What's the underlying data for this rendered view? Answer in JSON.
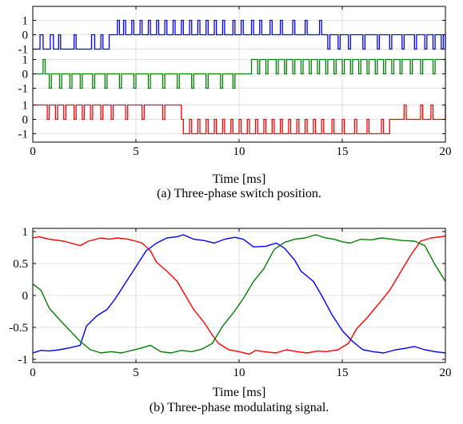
{
  "chart_data": [
    {
      "type": "line",
      "subplot": "a",
      "caption": "(a) Three-phase switch position.",
      "xlabel": "Time [ms]",
      "xlim": [
        0,
        20
      ],
      "x_ticks": [
        "0",
        "5",
        "10",
        "15",
        "20"
      ],
      "y_ticks": [
        "1",
        "0",
        "-1"
      ],
      "ylim_each": [
        -1,
        1
      ],
      "stacked_panels": 3,
      "grid": true,
      "series": [
        {
          "color": "#0000ff",
          "x": [
            0,
            0.35,
            0.5,
            0.85,
            1.0,
            1.25,
            1.35,
            2.0,
            2.1,
            2.85,
            3.0,
            3.3,
            3.4,
            3.7,
            3.8,
            4.1,
            4.2,
            4.4,
            4.5,
            4.8,
            4.9,
            5.2,
            5.3,
            5.6,
            5.7,
            6.0,
            6.1,
            6.4,
            6.5,
            6.8,
            6.9,
            7.2,
            7.3,
            7.6,
            7.7,
            8.0,
            8.1,
            8.4,
            8.5,
            8.8,
            8.9,
            9.2,
            9.3,
            9.7,
            9.8,
            10.1,
            10.2,
            10.6,
            10.7,
            11.0,
            11.1,
            11.5,
            11.6,
            12.0,
            12.1,
            12.6,
            12.7,
            13.2,
            13.3,
            13.9,
            14.0,
            14.3,
            14.4,
            14.8,
            14.9,
            15.3,
            15.4,
            16.0,
            16.1,
            16.7,
            16.8,
            17.3,
            17.4,
            17.9,
            18.0,
            18.5,
            18.6,
            19.0,
            19.1,
            19.4,
            19.5,
            19.8,
            19.9,
            20
          ],
          "y": [
            -1,
            0,
            -1,
            0,
            -1,
            0,
            -1,
            0,
            -1,
            0,
            -1,
            0,
            -1,
            0,
            0,
            1,
            0,
            1,
            0,
            1,
            0,
            1,
            0,
            1,
            0,
            1,
            0,
            1,
            0,
            1,
            0,
            1,
            0,
            1,
            0,
            1,
            0,
            1,
            0,
            1,
            0,
            1,
            0,
            1,
            0,
            1,
            0,
            1,
            0,
            1,
            0,
            1,
            0,
            1,
            0,
            1,
            0,
            1,
            0,
            1,
            0,
            -1,
            0,
            -1,
            0,
            -1,
            0,
            -1,
            0,
            -1,
            0,
            -1,
            0,
            -1,
            0,
            -1,
            0,
            -1,
            0,
            -1,
            0,
            -1,
            0,
            -1
          ]
        },
        {
          "color": "#008000",
          "x": [
            0,
            0.5,
            0.6,
            0.8,
            0.9,
            1.3,
            1.4,
            1.8,
            1.9,
            2.3,
            2.4,
            2.9,
            3.0,
            3.5,
            3.6,
            4.2,
            4.3,
            4.9,
            5.0,
            5.6,
            5.7,
            6.3,
            6.4,
            7.0,
            7.1,
            7.7,
            7.8,
            8.4,
            8.5,
            9.1,
            9.2,
            9.7,
            9.8,
            10.5,
            10.6,
            10.9,
            11.0,
            11.3,
            11.4,
            11.8,
            11.9,
            12.2,
            12.3,
            12.6,
            12.7,
            13.0,
            13.1,
            13.4,
            13.5,
            13.8,
            13.9,
            14.2,
            14.3,
            14.6,
            14.7,
            15.0,
            15.1,
            15.4,
            15.5,
            15.8,
            15.9,
            16.2,
            16.3,
            16.6,
            16.7,
            17.0,
            17.1,
            17.4,
            17.5,
            17.8,
            17.9,
            18.3,
            18.4,
            18.8,
            18.9,
            19.4,
            19.5,
            20
          ],
          "y": [
            0,
            1,
            0,
            -1,
            0,
            -1,
            0,
            -1,
            0,
            -1,
            0,
            -1,
            0,
            -1,
            0,
            -1,
            0,
            -1,
            0,
            -1,
            0,
            -1,
            0,
            -1,
            0,
            -1,
            0,
            -1,
            0,
            -1,
            0,
            -1,
            0,
            0,
            1,
            0,
            1,
            0,
            1,
            0,
            1,
            0,
            1,
            0,
            1,
            0,
            1,
            0,
            1,
            0,
            1,
            0,
            1,
            0,
            1,
            0,
            1,
            0,
            1,
            0,
            1,
            0,
            1,
            0,
            1,
            0,
            1,
            0,
            1,
            0,
            1,
            0,
            1,
            0,
            1,
            0,
            1,
            0
          ]
        },
        {
          "color": "#ff0000",
          "x": [
            0,
            0.7,
            0.8,
            1.1,
            1.2,
            1.5,
            1.6,
            2.0,
            2.1,
            2.4,
            2.5,
            2.8,
            2.9,
            3.3,
            3.4,
            3.8,
            3.9,
            4.5,
            4.6,
            5.3,
            5.4,
            6.3,
            6.4,
            7.2,
            7.3,
            7.6,
            7.7,
            8.0,
            8.1,
            8.4,
            8.5,
            8.8,
            8.9,
            9.2,
            9.3,
            9.6,
            9.7,
            10.0,
            10.1,
            10.4,
            10.5,
            10.8,
            10.9,
            11.2,
            11.3,
            11.6,
            11.7,
            12.0,
            12.1,
            12.4,
            12.5,
            12.8,
            12.9,
            13.2,
            13.3,
            13.6,
            13.7,
            14.0,
            14.1,
            14.5,
            14.6,
            15.0,
            15.1,
            15.6,
            15.7,
            16.2,
            16.3,
            16.9,
            17.0,
            17.3,
            17.4,
            18.0,
            18.1,
            18.8,
            18.9,
            19.3,
            19.4,
            20
          ],
          "y": [
            1,
            0,
            1,
            0,
            1,
            0,
            1,
            0,
            1,
            0,
            1,
            0,
            1,
            0,
            1,
            0,
            1,
            0,
            1,
            0,
            1,
            0,
            1,
            0,
            -1,
            0,
            -1,
            0,
            -1,
            0,
            -1,
            0,
            -1,
            0,
            -1,
            0,
            -1,
            0,
            -1,
            0,
            -1,
            0,
            -1,
            0,
            -1,
            0,
            -1,
            0,
            -1,
            0,
            -1,
            0,
            -1,
            0,
            -1,
            0,
            -1,
            0,
            -1,
            0,
            -1,
            0,
            -1,
            0,
            -1,
            0,
            -1,
            0,
            -1,
            0,
            0,
            1,
            0,
            1,
            0,
            1,
            0,
            1
          ]
        }
      ]
    },
    {
      "type": "line",
      "subplot": "b",
      "caption": "(b) Three-phase modulating signal.",
      "xlabel": "Time [ms]",
      "xlim": [
        0,
        20
      ],
      "ylim": [
        -1.05,
        1.05
      ],
      "x_ticks": [
        "0",
        "5",
        "10",
        "15",
        "20"
      ],
      "y_ticks": [
        "1",
        "0.5",
        "0",
        "-0.5",
        "-1"
      ],
      "grid": true,
      "series": [
        {
          "color": "#ff0000",
          "x": [
            0,
            0.3,
            0.8,
            1.5,
            2.3,
            2.7,
            3.3,
            3.7,
            4.1,
            4.6,
            5.0,
            5.3,
            5.7,
            6.0,
            6.5,
            7.0,
            7.4,
            7.8,
            8.3,
            8.7,
            9.0,
            9.5,
            10.0,
            10.5,
            10.8,
            11.2,
            11.8,
            12.3,
            12.8,
            13.3,
            13.8,
            14.2,
            14.8,
            15.3,
            15.7,
            16.2,
            16.8,
            17.3,
            17.8,
            18.3,
            18.8,
            19.3,
            19.8,
            20
          ],
          "y": [
            0.9,
            0.92,
            0.88,
            0.85,
            0.78,
            0.85,
            0.9,
            0.88,
            0.9,
            0.88,
            0.85,
            0.82,
            0.7,
            0.52,
            0.38,
            0.22,
            0.0,
            -0.22,
            -0.42,
            -0.62,
            -0.75,
            -0.85,
            -0.88,
            -0.92,
            -0.86,
            -0.88,
            -0.9,
            -0.85,
            -0.88,
            -0.9,
            -0.87,
            -0.88,
            -0.85,
            -0.75,
            -0.52,
            -0.35,
            -0.12,
            0.08,
            0.35,
            0.62,
            0.85,
            0.9,
            0.92,
            0.93
          ]
        },
        {
          "color": "#0000ff",
          "x": [
            0,
            0.4,
            0.8,
            1.3,
            1.8,
            2.3,
            2.6,
            3.1,
            3.6,
            4.0,
            4.5,
            5.0,
            5.5,
            6.0,
            6.5,
            7.0,
            7.3,
            7.8,
            8.3,
            8.8,
            9.3,
            9.8,
            10.2,
            10.7,
            11.3,
            11.8,
            12.2,
            12.7,
            13.0,
            13.6,
            14.0,
            14.5,
            15.0,
            15.5,
            16.0,
            16.5,
            17.0,
            17.6,
            18.0,
            18.5,
            19.0,
            19.5,
            20
          ],
          "y": [
            -0.9,
            -0.86,
            -0.87,
            -0.85,
            -0.82,
            -0.78,
            -0.48,
            -0.32,
            -0.22,
            -0.05,
            0.2,
            0.45,
            0.7,
            0.82,
            0.9,
            0.92,
            0.95,
            0.88,
            0.86,
            0.82,
            0.88,
            0.91,
            0.88,
            0.76,
            0.77,
            0.82,
            0.74,
            0.55,
            0.38,
            0.22,
            0.0,
            -0.3,
            -0.55,
            -0.72,
            -0.85,
            -0.88,
            -0.9,
            -0.85,
            -0.83,
            -0.8,
            -0.85,
            -0.88,
            -0.9
          ]
        },
        {
          "color": "#008000",
          "x": [
            0,
            0.4,
            0.8,
            1.3,
            1.8,
            2.3,
            2.8,
            3.3,
            3.8,
            4.3,
            4.8,
            5.3,
            5.7,
            6.2,
            6.7,
            7.2,
            7.7,
            8.2,
            8.7,
            9.2,
            9.7,
            10.2,
            10.7,
            11.2,
            11.7,
            12.2,
            12.7,
            13.2,
            13.7,
            14.2,
            14.6,
            15.0,
            15.4,
            15.9,
            16.4,
            16.9,
            17.4,
            17.9,
            18.5,
            19.0,
            19.5,
            20
          ],
          "y": [
            0.18,
            0.08,
            -0.2,
            -0.38,
            -0.55,
            -0.72,
            -0.85,
            -0.9,
            -0.88,
            -0.9,
            -0.86,
            -0.82,
            -0.78,
            -0.88,
            -0.9,
            -0.86,
            -0.88,
            -0.84,
            -0.75,
            -0.48,
            -0.28,
            -0.05,
            0.22,
            0.42,
            0.72,
            0.83,
            0.88,
            0.9,
            0.95,
            0.9,
            0.88,
            0.84,
            0.82,
            0.88,
            0.87,
            0.9,
            0.88,
            0.86,
            0.85,
            0.78,
            0.48,
            0.22
          ]
        }
      ]
    }
  ]
}
